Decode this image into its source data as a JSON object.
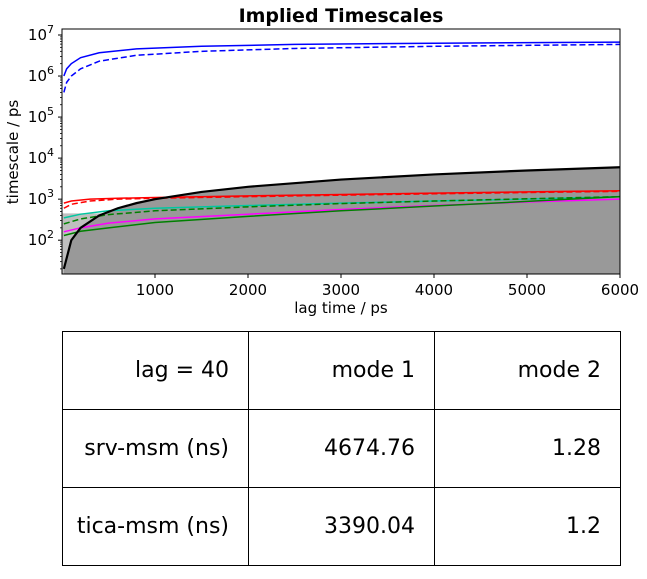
{
  "chart_data": {
    "type": "line",
    "title": "Implied Timescales",
    "xlabel": "lag time / ps",
    "ylabel": "timescale / ps",
    "xlim": [
      0,
      6000
    ],
    "ylim": [
      15,
      14000000
    ],
    "yscale": "log",
    "x_ticks": [
      "1000",
      "2000",
      "3000",
      "4000",
      "5000",
      "6000"
    ],
    "y_ticks": [
      {
        "base": "10",
        "exp": "2",
        "value": 100
      },
      {
        "base": "10",
        "exp": "3",
        "value": 1000
      },
      {
        "base": "10",
        "exp": "4",
        "value": 10000
      },
      {
        "base": "10",
        "exp": "5",
        "value": 100000
      },
      {
        "base": "10",
        "exp": "6",
        "value": 1000000
      },
      {
        "base": "10",
        "exp": "7",
        "value": 10000000
      }
    ],
    "grid": false,
    "shaded_regions": [
      {
        "color": "#bfbfbf",
        "description": "lag-time region",
        "x": [
          0,
          6000
        ],
        "upper": [
          450,
          450
        ]
      },
      {
        "color": "#999999",
        "description": "below lag-time line",
        "x": [
          20,
          100,
          200,
          400,
          600,
          800,
          1000,
          1500,
          2000,
          3000,
          4000,
          5000,
          6000
        ],
        "upper": [
          20,
          100,
          200,
          400,
          600,
          800,
          1000,
          1500,
          2000,
          3000,
          4000,
          5000,
          6000
        ]
      }
    ],
    "series": [
      {
        "color": "#0000ff",
        "style": "solid",
        "x": [
          20,
          50,
          100,
          200,
          400,
          800,
          1500,
          2500,
          4000,
          6000
        ],
        "y": [
          1000000,
          1500000,
          2000000,
          2800000,
          3700000,
          4600000,
          5300000,
          5900000,
          6300000,
          6700000
        ]
      },
      {
        "color": "#0000ff",
        "style": "dashed",
        "x": [
          20,
          50,
          100,
          200,
          400,
          800,
          1500,
          2500,
          4000,
          6000
        ],
        "y": [
          400000,
          700000,
          1000000,
          1500000,
          2300000,
          3200000,
          4000000,
          4700000,
          5300000,
          5900000
        ]
      },
      {
        "color": "#ff0000",
        "style": "solid",
        "x": [
          20,
          100,
          300,
          600,
          1000,
          2000,
          3000,
          4000,
          5000,
          6000
        ],
        "y": [
          800,
          900,
          1000,
          1050,
          1100,
          1200,
          1300,
          1400,
          1500,
          1600
        ]
      },
      {
        "color": "#ff0000",
        "style": "dashed",
        "x": [
          20,
          100,
          300,
          600,
          1000,
          2000,
          3000,
          4000,
          5000,
          6000
        ],
        "y": [
          600,
          750,
          900,
          1000,
          1050,
          1150,
          1250,
          1350,
          1450,
          1550
        ]
      },
      {
        "color": "#00c8a0",
        "style": "solid",
        "x": [
          20,
          200,
          500,
          1000,
          2000,
          3000,
          4000,
          5000,
          6000
        ],
        "y": [
          350,
          430,
          520,
          600,
          700,
          800,
          900,
          1000,
          1150
        ]
      },
      {
        "color": "#ff00ff",
        "style": "solid",
        "x": [
          20,
          200,
          500,
          1000,
          2000,
          3000,
          4000,
          5000,
          6000
        ],
        "y": [
          160,
          200,
          260,
          330,
          430,
          560,
          700,
          850,
          1000
        ]
      },
      {
        "color": "#008000",
        "style": "dashed",
        "x": [
          20,
          200,
          500,
          1000,
          2000,
          3000,
          4000,
          5000,
          6000
        ],
        "y": [
          250,
          330,
          420,
          520,
          650,
          780,
          900,
          1020,
          1150
        ]
      },
      {
        "color": "#008000",
        "style": "solid",
        "x": [
          20,
          200,
          500,
          1000,
          2000,
          3000,
          4000,
          5000,
          6000
        ],
        "y": [
          130,
          165,
          200,
          270,
          380,
          520,
          680,
          880,
          1150
        ]
      },
      {
        "color": "#000000",
        "style": "solid",
        "x": [
          20,
          100,
          200,
          400,
          600,
          800,
          1000,
          1500,
          2000,
          3000,
          4000,
          5000,
          6000
        ],
        "y": [
          20,
          100,
          200,
          400,
          600,
          800,
          1000,
          1500,
          2000,
          3000,
          4000,
          5000,
          6000
        ]
      }
    ]
  },
  "table": {
    "rows": [
      [
        "lag = 40",
        "mode 1",
        "mode 2"
      ],
      [
        "srv-msm (ns)",
        "4674.76",
        "1.28"
      ],
      [
        "tica-msm (ns)",
        "3390.04",
        "1.2"
      ]
    ]
  }
}
